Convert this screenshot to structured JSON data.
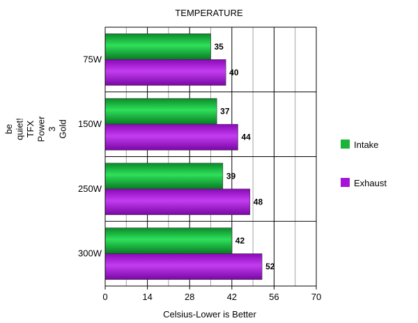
{
  "chart_data": {
    "type": "bar",
    "orientation": "horizontal",
    "title": "TEMPERATURE",
    "xlabel": "Celsius-Lower is Better",
    "ylabel_lines": [
      "be",
      "quiet!",
      "TFX",
      "Power",
      "3",
      "Gold"
    ],
    "categories": [
      "75W",
      "150W",
      "250W",
      "300W"
    ],
    "series": [
      {
        "name": "Intake",
        "values": [
          35,
          37,
          39,
          42
        ],
        "color": "#1bb33a"
      },
      {
        "name": "Exhaust",
        "values": [
          40,
          44,
          48,
          52
        ],
        "color": "#a514d6"
      }
    ],
    "xlim": [
      0,
      70
    ],
    "xticks": [
      0,
      14,
      28,
      42,
      56,
      70
    ],
    "grid": true,
    "legend_position": "right"
  }
}
